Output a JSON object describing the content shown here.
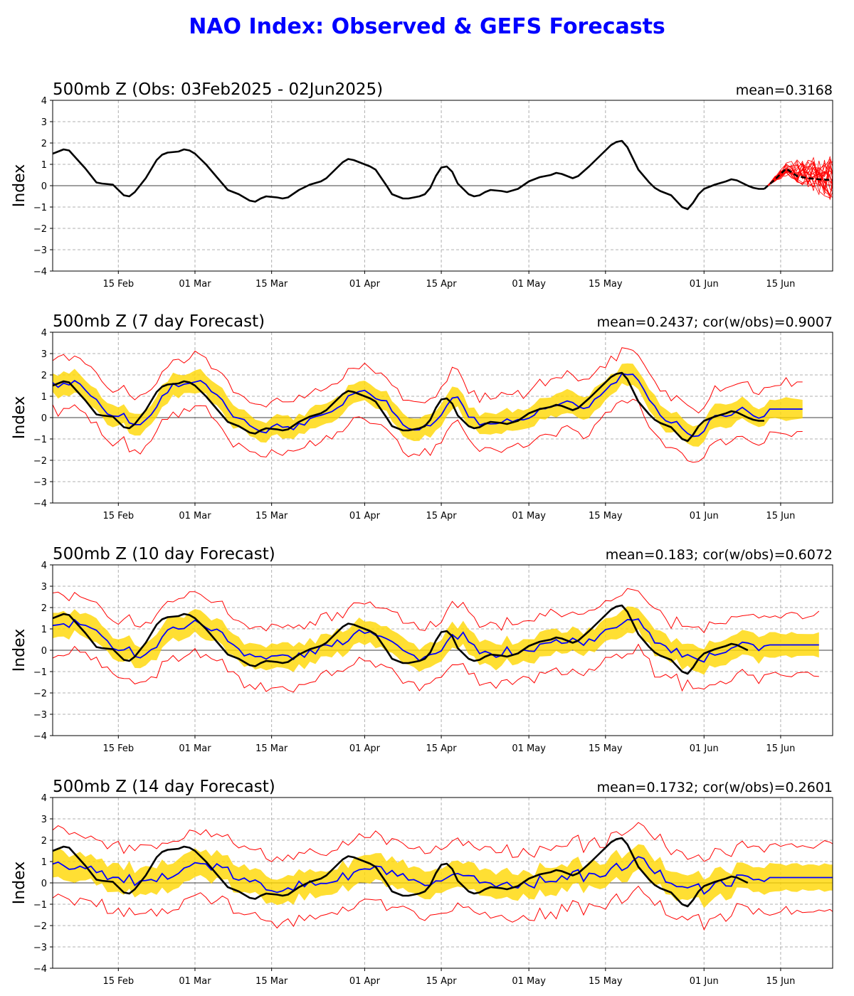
{
  "figure_title": "NAO Index: Observed & GEFS Forecasts",
  "colors": {
    "title": "#0000ff",
    "observed": "#000000",
    "ens_mean": "#0000ff",
    "spread_fill": "#ffd700",
    "extremes": "#ff0000",
    "members": "#ff0000",
    "grid": "#b0b0b0"
  },
  "chart_data": [
    {
      "type": "line",
      "title": "500mb Z (Obs: 03Feb2025 - 02Jun2025)",
      "stat": "mean=0.3168",
      "ylabel": "Index",
      "ylim": [
        -4,
        4
      ],
      "yticks": [
        -4,
        -3,
        -2,
        -1,
        0,
        1,
        2,
        3,
        4
      ],
      "xticks": [
        "15 Feb",
        "01 Mar",
        "15 Mar",
        "01 Apr",
        "15 Apr",
        "01 May",
        "15 May",
        "01 Jun",
        "15 Jun"
      ],
      "grid": true,
      "observed": [
        [
          0,
          1.5
        ],
        [
          2,
          1.7
        ],
        [
          3,
          1.65
        ],
        [
          6,
          0.8
        ],
        [
          8,
          0.15
        ],
        [
          9,
          0.1
        ],
        [
          11,
          0.05
        ],
        [
          13,
          -0.45
        ],
        [
          14,
          -0.5
        ],
        [
          15,
          -0.3
        ],
        [
          17,
          0.35
        ],
        [
          19,
          1.2
        ],
        [
          20,
          1.45
        ],
        [
          21,
          1.55
        ],
        [
          23,
          1.6
        ],
        [
          24,
          1.7
        ],
        [
          25,
          1.65
        ],
        [
          26,
          1.5
        ],
        [
          28,
          1.0
        ],
        [
          30,
          0.4
        ],
        [
          32,
          -0.2
        ],
        [
          34,
          -0.4
        ],
        [
          36,
          -0.7
        ],
        [
          37,
          -0.75
        ],
        [
          38,
          -0.6
        ],
        [
          39,
          -0.5
        ],
        [
          41,
          -0.55
        ],
        [
          42,
          -0.6
        ],
        [
          43,
          -0.55
        ],
        [
          45,
          -0.2
        ],
        [
          47,
          0.05
        ],
        [
          49,
          0.2
        ],
        [
          50,
          0.35
        ],
        [
          52,
          0.85
        ],
        [
          53,
          1.1
        ],
        [
          54,
          1.25
        ],
        [
          55,
          1.2
        ],
        [
          57,
          1.0
        ],
        [
          58,
          0.9
        ],
        [
          59,
          0.75
        ],
        [
          61,
          0.0
        ],
        [
          62,
          -0.4
        ],
        [
          64,
          -0.6
        ],
        [
          65,
          -0.6
        ],
        [
          67,
          -0.5
        ],
        [
          68,
          -0.4
        ],
        [
          69,
          -0.1
        ],
        [
          70,
          0.45
        ],
        [
          71,
          0.85
        ],
        [
          72,
          0.9
        ],
        [
          73,
          0.65
        ],
        [
          74,
          0.1
        ],
        [
          76,
          -0.4
        ],
        [
          77,
          -0.5
        ],
        [
          78,
          -0.45
        ],
        [
          79,
          -0.3
        ],
        [
          80,
          -0.2
        ],
        [
          82,
          -0.25
        ],
        [
          83,
          -0.3
        ],
        [
          85,
          -0.15
        ],
        [
          87,
          0.2
        ],
        [
          89,
          0.4
        ],
        [
          91,
          0.5
        ],
        [
          92,
          0.6
        ],
        [
          93,
          0.55
        ],
        [
          94,
          0.45
        ],
        [
          95,
          0.35
        ],
        [
          96,
          0.45
        ],
        [
          98,
          0.9
        ],
        [
          100,
          1.4
        ],
        [
          102,
          1.9
        ],
        [
          103,
          2.05
        ],
        [
          104,
          2.1
        ],
        [
          105,
          1.8
        ],
        [
          107,
          0.75
        ],
        [
          109,
          0.15
        ],
        [
          110,
          -0.1
        ],
        [
          111,
          -0.25
        ],
        [
          113,
          -0.45
        ],
        [
          115,
          -1.0
        ],
        [
          116,
          -1.1
        ],
        [
          117,
          -0.8
        ],
        [
          118,
          -0.4
        ],
        [
          119,
          -0.15
        ],
        [
          121,
          0.05
        ],
        [
          123,
          0.2
        ],
        [
          124,
          0.3
        ],
        [
          125,
          0.25
        ],
        [
          127,
          0.0
        ],
        [
          128,
          -0.1
        ],
        [
          129,
          -0.15
        ],
        [
          130,
          -0.15
        ]
      ],
      "forecast_mean": [
        [
          130,
          -0.15
        ],
        [
          132,
          0.3
        ],
        [
          134,
          0.8
        ],
        [
          136,
          0.45
        ],
        [
          138,
          0.35
        ],
        [
          140,
          0.3
        ],
        [
          143,
          0.25
        ],
        [
          147,
          0.3
        ],
        [
          150,
          0.28
        ]
      ]
    },
    {
      "type": "line",
      "title": "500mb Z (7 day Forecast)",
      "stat": "mean=0.2437; cor(w/obs)=0.9007",
      "ylabel": "Index",
      "ylim": [
        -4,
        4
      ],
      "yticks": [
        -4,
        -3,
        -2,
        -1,
        0,
        1,
        2,
        3,
        4
      ],
      "xticks": [
        "15 Feb",
        "01 Mar",
        "15 Mar",
        "01 Apr",
        "15 Apr",
        "01 May",
        "15 May",
        "01 Jun",
        "15 Jun"
      ],
      "grid": true,
      "lead": 7,
      "err": 0.35,
      "obs_end": 130,
      "fc_end": 137
    },
    {
      "type": "line",
      "title": "500mb Z (10 day Forecast)",
      "stat": "mean=0.183; cor(w/obs)=0.6072",
      "ylabel": "Index",
      "ylim": [
        -4,
        4
      ],
      "yticks": [
        -4,
        -3,
        -2,
        -1,
        0,
        1,
        2,
        3,
        4
      ],
      "xticks": [
        "15 Feb",
        "01 Mar",
        "15 Mar",
        "01 Apr",
        "15 Apr",
        "01 May",
        "15 May",
        "01 Jun",
        "15 Jun"
      ],
      "grid": true,
      "lead": 10,
      "err": 0.5,
      "obs_end": 127,
      "fc_end": 140
    },
    {
      "type": "line",
      "title": "500mb Z (14 day Forecast)",
      "stat": "mean=0.1732; cor(w/obs)=0.2601",
      "ylabel": "Index",
      "ylim": [
        -4,
        4
      ],
      "yticks": [
        -4,
        -3,
        -2,
        -1,
        0,
        1,
        2,
        3,
        4
      ],
      "xticks": [
        "15 Feb",
        "01 Mar",
        "15 Mar",
        "01 Apr",
        "15 Apr",
        "01 May",
        "15 May",
        "01 Jun",
        "15 Jun"
      ],
      "grid": true,
      "lead": 14,
      "err": 0.65,
      "obs_end": 127,
      "fc_end": 144
    }
  ]
}
